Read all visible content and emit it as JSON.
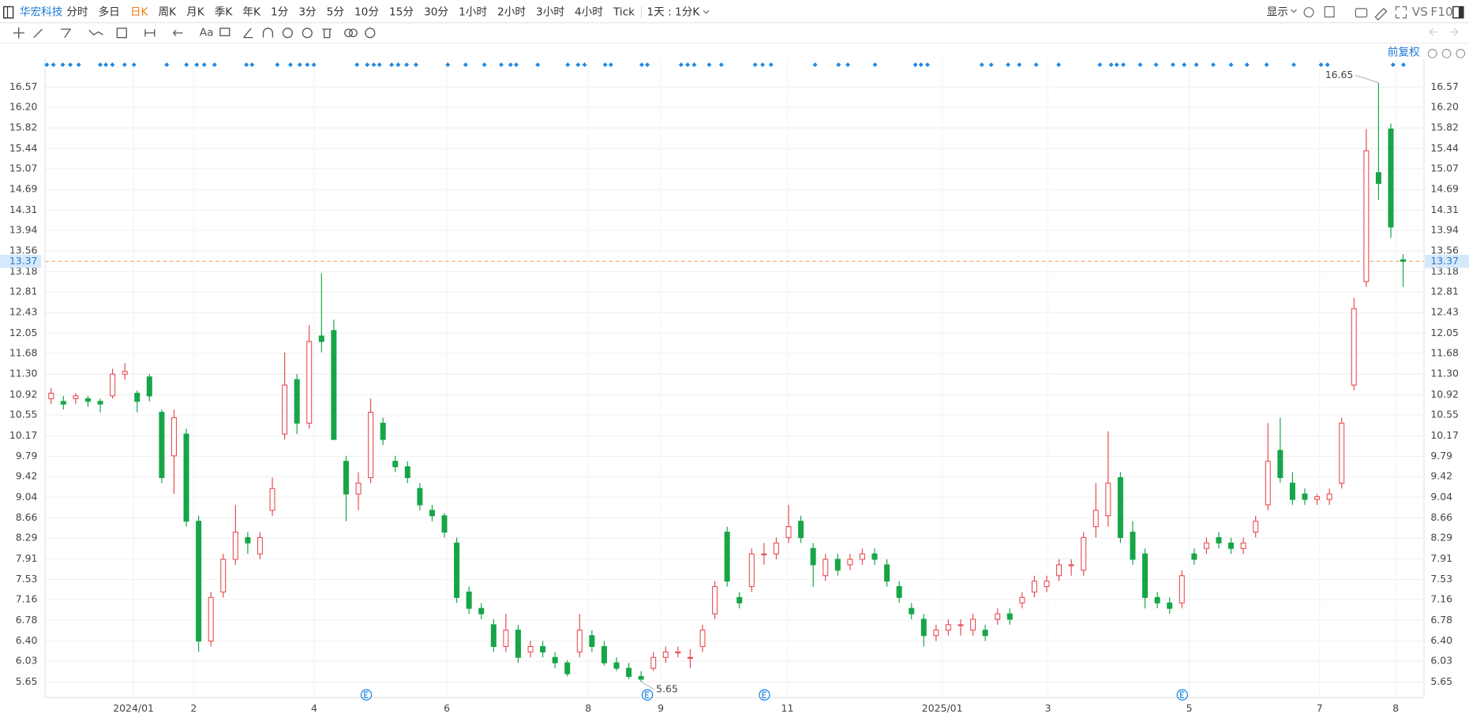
{
  "toolbar": {
    "stock": "华宏科技",
    "periods": [
      "分时",
      "多日",
      "日K",
      "周K",
      "月K",
      "季K",
      "年K",
      "1分",
      "3分",
      "5分",
      "10分",
      "15分",
      "30分",
      "1小时",
      "2小时",
      "3小时",
      "4小时",
      "Tick"
    ],
    "active_period": 2,
    "interval": "1天 : 1分K",
    "display": "显示",
    "vs": "VS",
    "f10": "F10",
    "text_tool": "Aa",
    "adjust": "前复权"
  },
  "chart_data": {
    "type": "candlestick",
    "up_color": "#e8494f",
    "down_color": "#17a548",
    "last_color": "#f3a66c",
    "open": [
      10.85,
      10.8,
      10.85,
      10.85,
      10.8,
      10.9,
      11.3,
      10.95,
      11.25,
      10.6,
      9.8,
      10.2,
      8.6,
      6.4,
      7.3,
      7.9,
      8.3,
      8.0,
      8.8,
      10.2,
      11.2,
      10.4,
      12.0,
      12.1,
      9.7,
      9.1,
      9.4,
      10.4,
      9.7,
      9.6,
      9.2,
      8.8,
      8.7,
      8.2,
      7.3,
      7.0,
      6.7,
      6.3,
      6.6,
      6.2,
      6.3,
      6.1,
      6.0,
      6.2,
      6.5,
      6.3,
      6.0,
      5.9,
      5.75,
      5.9,
      6.1,
      6.2,
      6.1,
      6.3,
      6.9,
      8.4,
      7.2,
      7.4,
      8.0,
      8.0,
      8.3,
      8.6,
      8.1,
      7.6,
      7.9,
      7.8,
      7.9,
      8.0,
      7.8,
      7.4,
      7.0,
      6.8,
      6.5,
      6.6,
      6.7,
      6.6,
      6.6,
      6.8,
      6.9,
      7.1,
      7.3,
      7.4,
      7.6,
      7.8,
      7.7,
      8.5,
      8.7,
      9.4,
      8.4,
      8.0,
      7.2,
      7.1,
      7.1,
      8.0,
      8.1,
      8.3,
      8.2,
      8.1,
      8.4,
      8.9,
      9.9,
      9.3,
      9.1,
      9.0,
      9.0,
      9.3,
      11.1,
      13.0,
      15.0,
      15.8,
      13.4
    ],
    "high": [
      11.05,
      10.9,
      10.95,
      10.9,
      10.85,
      11.4,
      11.5,
      11.0,
      11.3,
      10.65,
      10.65,
      10.3,
      8.7,
      7.3,
      8.0,
      8.9,
      8.4,
      8.4,
      9.4,
      11.7,
      11.3,
      12.2,
      13.15,
      12.3,
      9.8,
      9.5,
      10.85,
      10.5,
      9.8,
      9.7,
      9.3,
      8.9,
      8.75,
      8.3,
      7.4,
      7.1,
      6.8,
      6.9,
      6.7,
      6.4,
      6.4,
      6.2,
      6.05,
      6.9,
      6.6,
      6.4,
      6.1,
      6.0,
      5.85,
      6.2,
      6.3,
      6.3,
      6.25,
      6.7,
      7.5,
      8.5,
      7.3,
      8.1,
      8.2,
      8.3,
      8.9,
      8.7,
      8.2,
      8.0,
      8.0,
      8.0,
      8.1,
      8.1,
      7.9,
      7.5,
      7.1,
      6.9,
      6.7,
      6.8,
      6.8,
      6.9,
      6.7,
      7.0,
      7.0,
      7.3,
      7.6,
      7.6,
      7.9,
      7.9,
      8.4,
      9.3,
      10.25,
      9.5,
      8.6,
      8.1,
      7.3,
      7.2,
      7.7,
      8.1,
      8.3,
      8.4,
      8.3,
      8.3,
      8.7,
      10.4,
      10.5,
      9.5,
      9.2,
      9.1,
      9.2,
      10.5,
      12.7,
      15.8,
      16.65,
      15.9,
      13.5
    ],
    "low": [
      10.75,
      10.65,
      10.75,
      10.7,
      10.6,
      10.85,
      11.2,
      10.6,
      10.8,
      9.3,
      9.1,
      8.5,
      6.2,
      6.3,
      7.2,
      7.8,
      8.0,
      7.9,
      8.7,
      10.1,
      10.2,
      10.3,
      11.7,
      10.1,
      8.6,
      8.8,
      9.3,
      10.0,
      9.5,
      9.3,
      8.8,
      8.6,
      8.3,
      7.1,
      6.9,
      6.8,
      6.2,
      6.2,
      6.0,
      6.1,
      6.1,
      5.9,
      5.75,
      6.1,
      6.2,
      5.95,
      5.85,
      5.7,
      5.65,
      5.85,
      6.0,
      6.1,
      5.9,
      6.2,
      6.8,
      7.4,
      7.0,
      7.3,
      7.8,
      7.9,
      8.2,
      8.2,
      7.4,
      7.5,
      7.6,
      7.7,
      7.8,
      7.8,
      7.4,
      7.1,
      6.8,
      6.3,
      6.4,
      6.5,
      6.5,
      6.5,
      6.4,
      6.7,
      6.7,
      7.0,
      7.2,
      7.3,
      7.5,
      7.6,
      7.6,
      8.3,
      8.5,
      8.2,
      7.8,
      7.0,
      7.0,
      6.9,
      7.0,
      7.8,
      8.0,
      8.1,
      8.0,
      8.0,
      8.3,
      8.8,
      9.3,
      8.9,
      8.9,
      8.9,
      8.9,
      9.2,
      11.0,
      12.9,
      14.5,
      13.8,
      12.9
    ],
    "close": [
      10.95,
      10.75,
      10.9,
      10.8,
      10.75,
      11.3,
      11.35,
      10.8,
      10.9,
      9.4,
      10.5,
      8.6,
      6.4,
      7.2,
      7.9,
      8.4,
      8.2,
      8.3,
      9.2,
      11.1,
      10.4,
      11.9,
      11.9,
      10.1,
      9.1,
      9.3,
      10.6,
      10.1,
      9.6,
      9.4,
      8.9,
      8.7,
      8.4,
      7.2,
      7.0,
      6.9,
      6.3,
      6.6,
      6.1,
      6.3,
      6.2,
      6.0,
      5.8,
      6.6,
      6.3,
      6.0,
      5.9,
      5.75,
      5.7,
      6.1,
      6.2,
      6.2,
      6.1,
      6.6,
      7.4,
      7.5,
      7.1,
      8.0,
      8.0,
      8.2,
      8.5,
      8.3,
      7.8,
      7.9,
      7.7,
      7.9,
      8.0,
      7.9,
      7.5,
      7.2,
      6.9,
      6.5,
      6.6,
      6.7,
      6.7,
      6.8,
      6.5,
      6.9,
      6.8,
      7.2,
      7.5,
      7.5,
      7.8,
      7.8,
      8.3,
      8.8,
      9.3,
      8.3,
      7.9,
      7.2,
      7.1,
      7.0,
      7.6,
      7.9,
      8.2,
      8.2,
      8.1,
      8.2,
      8.6,
      9.7,
      9.4,
      9.0,
      9.0,
      9.05,
      9.1,
      10.4,
      12.5,
      15.4,
      14.8,
      14.0,
      13.37
    ],
    "xlim": [
      -0.5,
      111.7
    ],
    "xticks": [
      {
        "value": 6.7,
        "label": "2024/01"
      },
      {
        "value": 11.6,
        "label": "2"
      },
      {
        "value": 21.4,
        "label": "4"
      },
      {
        "value": 32.2,
        "label": "6"
      },
      {
        "value": 43.7,
        "label": "8"
      },
      {
        "value": 49.6,
        "label": "9"
      },
      {
        "value": 59.9,
        "label": "11"
      },
      {
        "value": 72.5,
        "label": "2025/01"
      },
      {
        "value": 81.1,
        "label": "3"
      },
      {
        "value": 92.6,
        "label": "5"
      },
      {
        "value": 103.2,
        "label": "7"
      },
      {
        "value": 109.4,
        "label": "8"
      }
    ],
    "ylim": [
      5.36,
      17.1
    ],
    "yticks": [
      5.65,
      6.03,
      {
        "value": 6.4,
        "label": "6.40"
      },
      6.78,
      7.16,
      7.53,
      7.91,
      8.29,
      8.66,
      9.04,
      9.42,
      9.79,
      10.17,
      10.55,
      10.92,
      {
        "value": 11.3,
        "label": "11.30"
      },
      11.68,
      12.05,
      12.43,
      12.81,
      13.18,
      13.56,
      13.94,
      14.31,
      14.69,
      15.07,
      15.44,
      15.82,
      {
        "value": 16.2,
        "label": "16.20"
      },
      16.57
    ],
    "grid": true
  }
}
